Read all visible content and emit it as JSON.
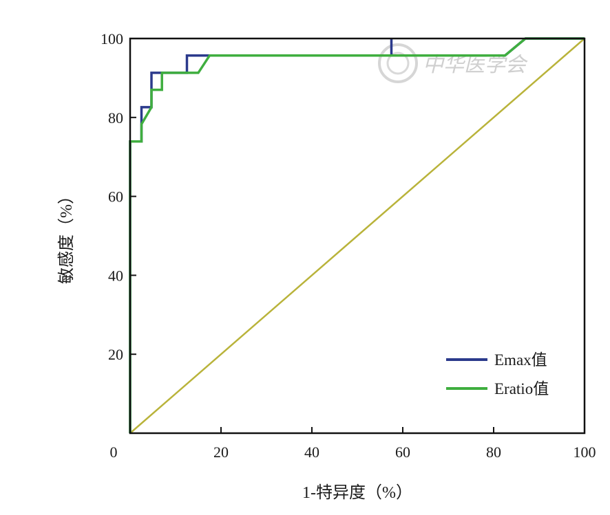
{
  "chart_data": {
    "type": "line",
    "xlabel": "1-特异度（%）",
    "ylabel": "敏感度（%）",
    "xlim": [
      0,
      100
    ],
    "ylim": [
      0,
      100
    ],
    "x_ticks": [
      0,
      20,
      40,
      60,
      80,
      100
    ],
    "y_ticks": [
      20,
      40,
      60,
      80,
      100
    ],
    "grid": false,
    "legend_position": "bottom-right",
    "series": [
      {
        "name": "Emax值",
        "color": "#2b3a8c",
        "points": [
          [
            0,
            0
          ],
          [
            0,
            73.9
          ],
          [
            2.5,
            73.9
          ],
          [
            2.5,
            82.6
          ],
          [
            4.7,
            82.6
          ],
          [
            4.7,
            91.3
          ],
          [
            12.5,
            91.3
          ],
          [
            12.5,
            95.7
          ],
          [
            57.5,
            95.7
          ],
          [
            57.5,
            100
          ],
          [
            57.5,
            95.7
          ],
          [
            82.5,
            95.7
          ],
          [
            87,
            100
          ],
          [
            100,
            100
          ]
        ]
      },
      {
        "name": "Eratio值",
        "color": "#3fae3f",
        "points": [
          [
            0,
            0
          ],
          [
            0,
            73.9
          ],
          [
            2.5,
            73.9
          ],
          [
            2.5,
            78.3
          ],
          [
            4.7,
            82.6
          ],
          [
            4.7,
            87
          ],
          [
            7,
            87
          ],
          [
            7,
            91.3
          ],
          [
            15,
            91.3
          ],
          [
            17.5,
            95.7
          ],
          [
            82.5,
            95.7
          ],
          [
            87,
            100
          ],
          [
            100,
            100
          ]
        ]
      },
      {
        "name": "",
        "color": "#b9b33a",
        "points": [
          [
            0,
            0
          ],
          [
            100,
            100
          ]
        ]
      }
    ]
  },
  "watermark": {
    "text": "中华医学会"
  }
}
